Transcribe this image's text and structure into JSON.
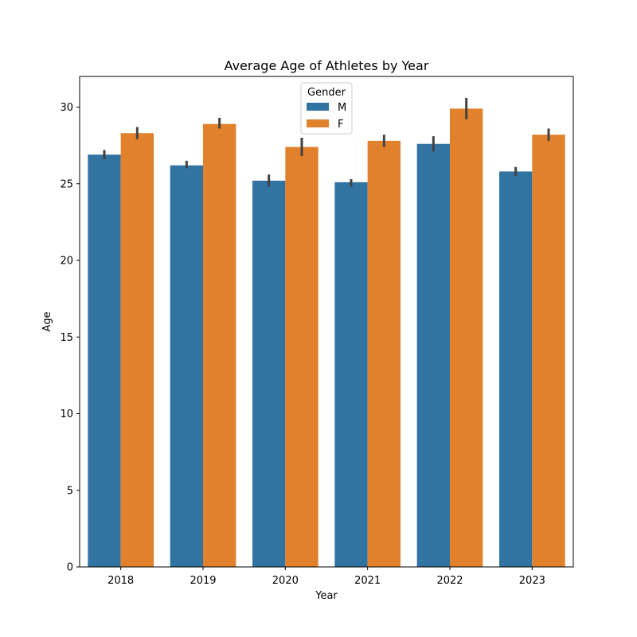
{
  "chart_data": {
    "type": "bar",
    "title": "Average Age of Athletes by Year",
    "xlabel": "Year",
    "ylabel": "Age",
    "categories": [
      "2018",
      "2019",
      "2020",
      "2021",
      "2022",
      "2023"
    ],
    "ylim": [
      0,
      32
    ],
    "yticks": [
      0,
      5,
      10,
      15,
      20,
      25,
      30
    ],
    "grid": false,
    "legend": {
      "title": "Gender",
      "placement": "top-center"
    },
    "series": [
      {
        "name": "M",
        "color": "#3274a1",
        "values": [
          26.9,
          26.2,
          25.2,
          25.1,
          27.6,
          25.8
        ],
        "error_low": [
          26.6,
          26.0,
          24.8,
          24.8,
          27.1,
          25.5
        ],
        "error_high": [
          27.2,
          26.5,
          25.6,
          25.3,
          28.1,
          26.1
        ]
      },
      {
        "name": "F",
        "color": "#e1812c",
        "values": [
          28.3,
          28.9,
          27.4,
          27.8,
          29.9,
          28.2
        ],
        "error_low": [
          27.9,
          28.6,
          26.8,
          27.4,
          29.2,
          27.8
        ],
        "error_high": [
          28.7,
          29.3,
          28.0,
          28.2,
          30.6,
          28.6
        ]
      }
    ]
  }
}
